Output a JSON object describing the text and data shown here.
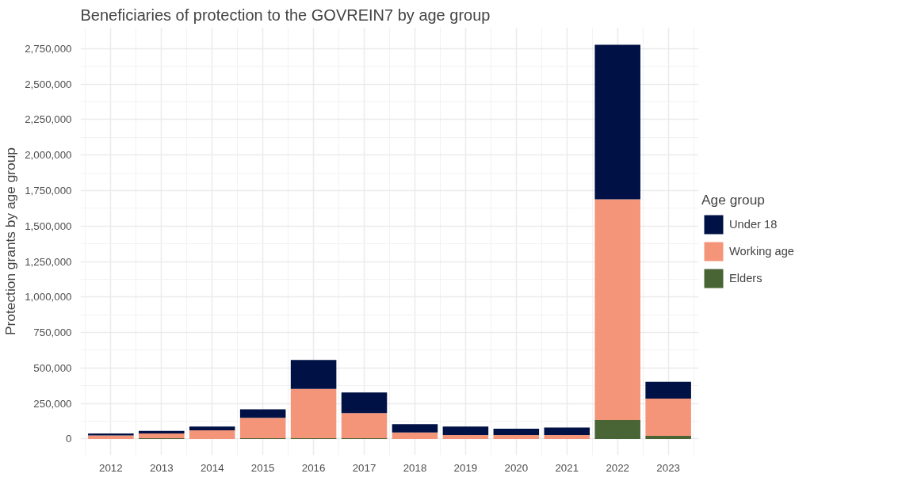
{
  "chart_data": {
    "type": "bar",
    "title": "Beneficiaries of protection to the GOVREIN7 by age group",
    "ylabel": "Protection grants by age group",
    "legend_title": "Age group",
    "categories": [
      "2012",
      "2013",
      "2014",
      "2015",
      "2016",
      "2017",
      "2018",
      "2019",
      "2020",
      "2021",
      "2022",
      "2023"
    ],
    "stacked": true,
    "series": [
      {
        "name": "Elders",
        "color": "#4a6535",
        "values": [
          null,
          5000,
          null,
          5000,
          5000,
          5000,
          null,
          null,
          null,
          null,
          133000,
          22000
        ]
      },
      {
        "name": "Working age",
        "color": "#f4957a",
        "values": [
          25000,
          33000,
          61000,
          144000,
          348000,
          177000,
          45000,
          27000,
          27000,
          27000,
          1555000,
          262000
        ]
      },
      {
        "name": "Under 18",
        "color": "#001145",
        "values": [
          13000,
          18000,
          27000,
          60000,
          203000,
          145000,
          59000,
          61000,
          45000,
          54000,
          1089000,
          119000
        ]
      }
    ],
    "ylim": [
      -115000,
      2900000
    ],
    "yticks": [
      {
        "value": 0,
        "label": "0"
      },
      {
        "value": 250000,
        "label": "250,000"
      },
      {
        "value": 500000,
        "label": "500,000"
      },
      {
        "value": 750000,
        "label": "750,000"
      },
      {
        "value": 1000000,
        "label": "1,000,000"
      },
      {
        "value": 1250000,
        "label": "1,250,000"
      },
      {
        "value": 1500000,
        "label": "1,500,000"
      },
      {
        "value": 1750000,
        "label": "1,750,000"
      },
      {
        "value": 2000000,
        "label": "2,000,000"
      },
      {
        "value": 2250000,
        "label": "2,250,000"
      },
      {
        "value": 2500000,
        "label": "2,500,000"
      },
      {
        "value": 2750000,
        "label": "2,750,000"
      }
    ],
    "grid": true,
    "legend": "right"
  }
}
